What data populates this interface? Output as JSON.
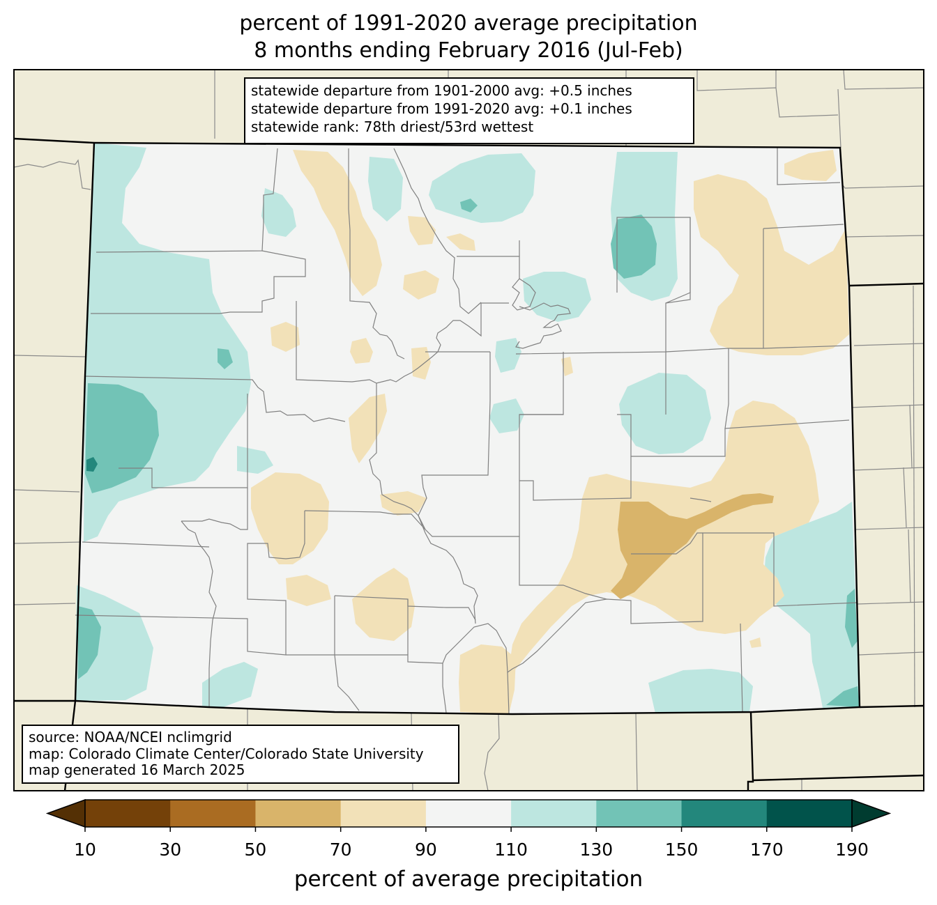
{
  "title": {
    "line1": "percent of 1991-2020 average precipitation",
    "line2": "8 months ending February 2016 (Jul-Feb)"
  },
  "stats": {
    "line1": "statewide departure from 1901-2000 avg: +0.5 inches",
    "line2": "statewide departure from 1991-2020 avg: +0.1 inches",
    "line3": "statewide rank: 78th driest/53rd wettest"
  },
  "source": {
    "line1": "source: NOAA/NCEI nclimgrid",
    "line2": "map: Colorado Climate Center/Colorado State University",
    "line3": "map generated 16 March 2025"
  },
  "colorbar": {
    "ticks": [
      "10",
      "30",
      "50",
      "70",
      "90",
      "110",
      "130",
      "150",
      "170",
      "190"
    ],
    "label": "percent of average precipitation",
    "colors": [
      "#543005",
      "#744109",
      "#aa6c22",
      "#d9b46a",
      "#f2e1b8",
      "#f3f4f3",
      "#bde6e0",
      "#72c3b6",
      "#23877c",
      "#01534b",
      "#003c30"
    ]
  },
  "map_colors": {
    "background": "#efecd9",
    "colorado_base": "#f3f4f3"
  }
}
